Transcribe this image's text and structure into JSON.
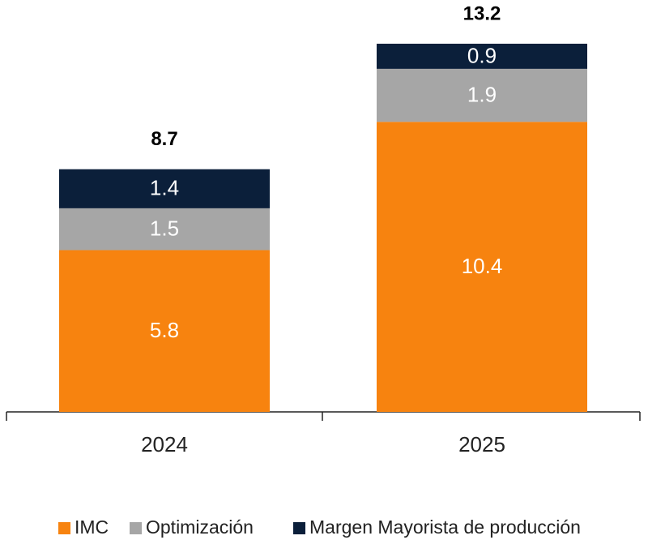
{
  "chart_data": {
    "type": "stacked_bar",
    "categories": [
      "2024",
      "2025"
    ],
    "series": [
      {
        "name": "IMC",
        "color": "#f7830f",
        "values": [
          5.8,
          10.4
        ]
      },
      {
        "name": "Optimización",
        "color": "#a6a6a6",
        "values": [
          1.5,
          1.9
        ]
      },
      {
        "name": "Margen Mayorista de producción",
        "color": "#0b1f3a",
        "values": [
          1.4,
          0.9
        ]
      }
    ],
    "totals": [
      8.7,
      13.2
    ]
  }
}
